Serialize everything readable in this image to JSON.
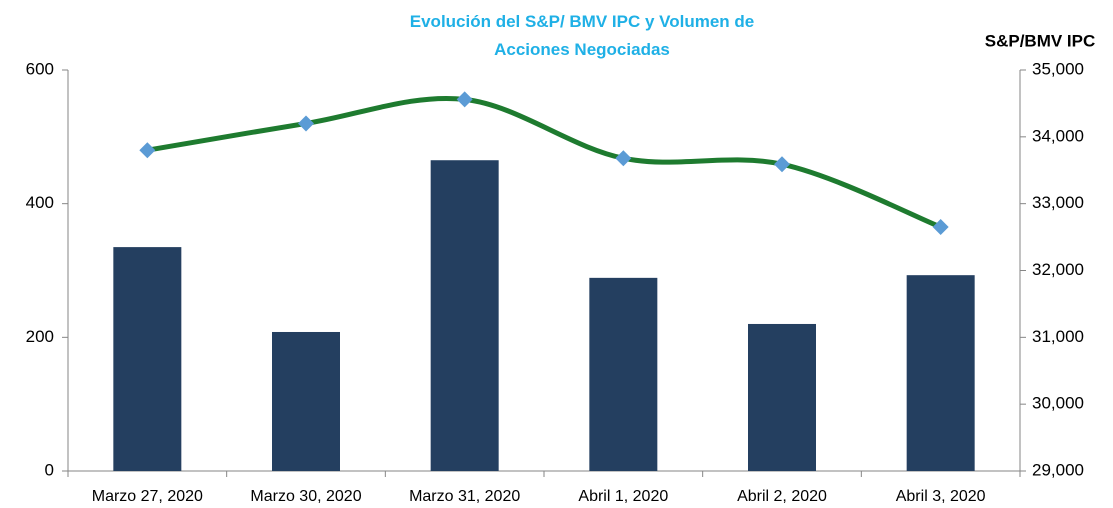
{
  "chart_data": {
    "type": "bar_line",
    "title": "Evolución del S&P/ BMV IPC y Volumen de Acciones Negociadas",
    "y2_label": "S&P/BMV IPC",
    "categories": [
      "Marzo 27, 2020",
      "Marzo 30, 2020",
      "Marzo 31, 2020",
      "Abril 1, 2020",
      "Abril 2, 2020",
      "Abril 3, 2020"
    ],
    "series": [
      {
        "type": "bar",
        "color": "#243f60",
        "values": [
          335,
          208,
          465,
          289,
          220,
          293
        ]
      },
      {
        "type": "line",
        "axis": "y2",
        "color": "#1e7b2f",
        "marker_color": "#5b9bd5",
        "values": [
          33800,
          34200,
          34560,
          33680,
          33590,
          32650
        ]
      }
    ],
    "ylim": [
      0,
      600
    ],
    "yticks": [
      0,
      200,
      400,
      600
    ],
    "y2lim": [
      29000,
      35000
    ],
    "y2ticks": [
      {
        "value": 29000,
        "label": "29,000"
      },
      {
        "value": 30000,
        "label": "30,000"
      },
      {
        "value": 31000,
        "label": "31,000"
      },
      {
        "value": 32000,
        "label": "32,000"
      },
      {
        "value": 33000,
        "label": "33,000"
      },
      {
        "value": 34000,
        "label": "34,000"
      },
      {
        "value": 35000,
        "label": "35,000"
      }
    ],
    "grid": false
  }
}
